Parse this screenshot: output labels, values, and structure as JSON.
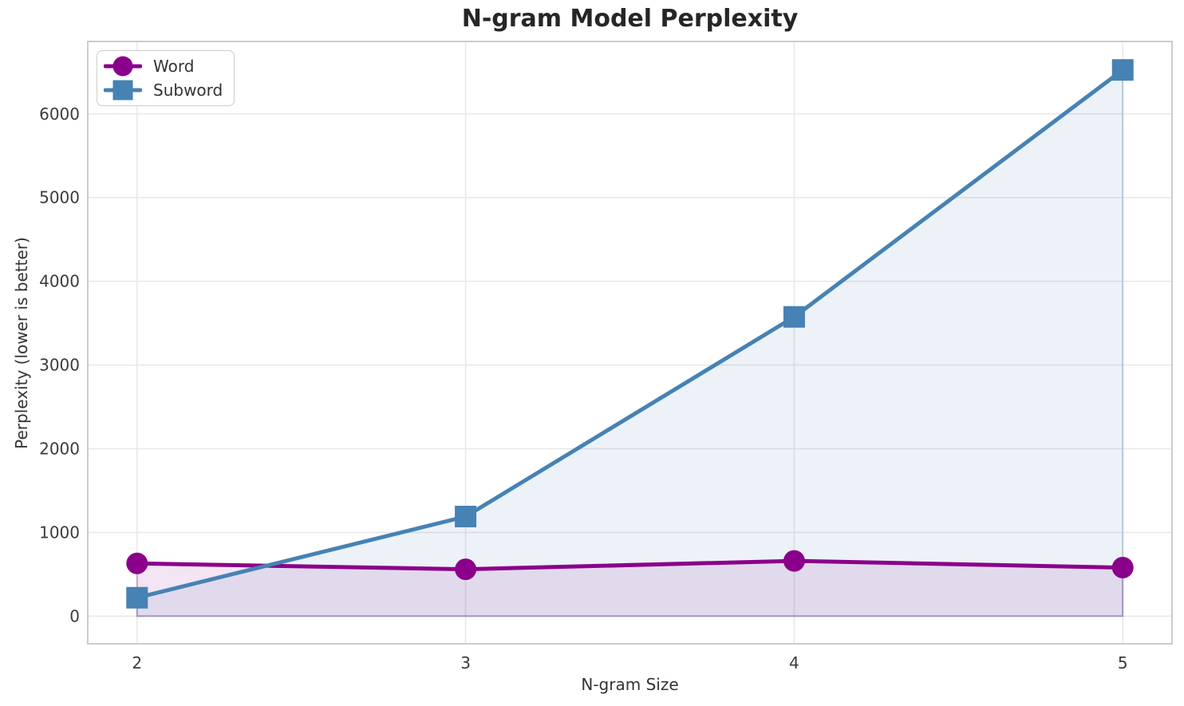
{
  "chart_data": {
    "type": "line",
    "title": "N-gram Model Perplexity",
    "xlabel": "N-gram Size",
    "ylabel": "Perplexity (lower is better)",
    "x": [
      2,
      3,
      4,
      5
    ],
    "xticks": [
      2,
      3,
      4,
      5
    ],
    "yticks": [
      0,
      1000,
      2000,
      3000,
      4000,
      5000,
      6000
    ],
    "xlim": [
      1.85,
      5.15
    ],
    "ylim": [
      -330,
      6865
    ],
    "grid": true,
    "legend_position": "upper left",
    "fill_to_zero": true,
    "fill_alpha": 0.1,
    "series": [
      {
        "name": "Word",
        "marker": "circle",
        "color": "#8B008B",
        "values": [
          630,
          560,
          660,
          580
        ]
      },
      {
        "name": "Subword",
        "marker": "square",
        "color": "#4682B4",
        "values": [
          220,
          1190,
          3575,
          6525
        ]
      }
    ],
    "style": {
      "grid_color": "#e7e7e7",
      "spine_color": "#cccccc",
      "tick_text_color": "#3b3b3b",
      "title_color": "#262626",
      "label_color": "#333333",
      "background": "#ffffff"
    }
  }
}
